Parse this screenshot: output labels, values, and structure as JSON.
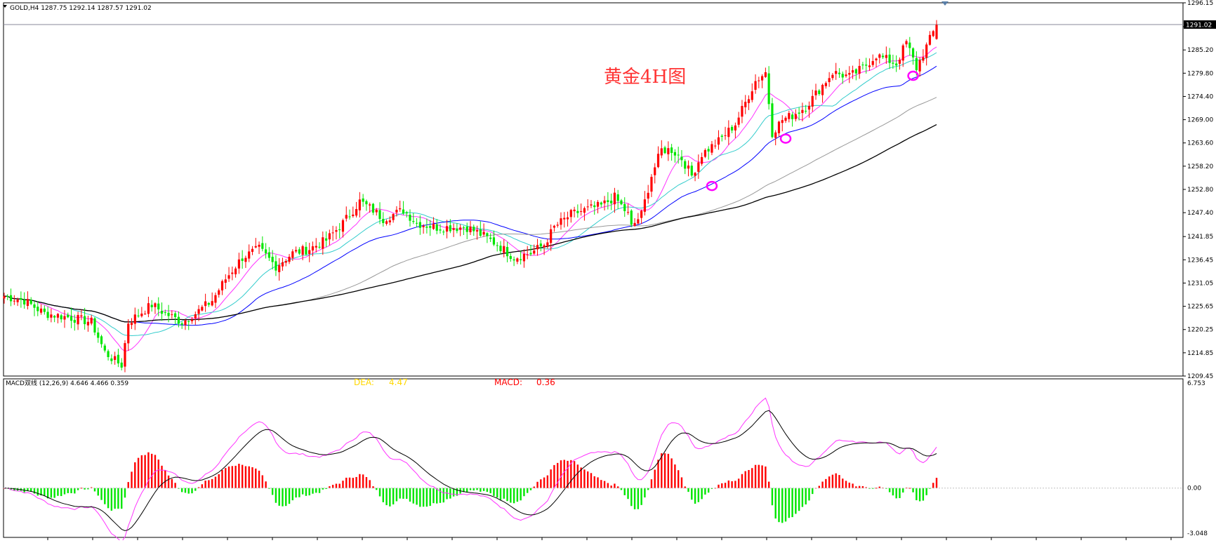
{
  "main": {
    "header_text": "GOLD,H4  1287.75 1292.14 1287.57 1291.02",
    "annotation": "黄金4H图",
    "current_price": "1291.02",
    "price_ticks": [
      "1296.15",
      "1290.60",
      "1285.20",
      "1279.80",
      "1274.40",
      "1269.00",
      "1263.60",
      "1258.20",
      "1252.80",
      "1247.40",
      "1241.85",
      "1236.45",
      "1231.05",
      "1225.65",
      "1220.25",
      "1214.85",
      "1209.45"
    ],
    "price_range": [
      1209.45,
      1296.15
    ],
    "colors": {
      "up": "#ff0000",
      "down": "#00e600",
      "ma_magenta": "#ff33ff",
      "ma_cyan": "#33cccc",
      "ma_blue": "#0000ff",
      "ma_gray": "#999999",
      "ma_black": "#000000",
      "marker": "#ff00ff",
      "annotation": "#ff3333"
    }
  },
  "indicator": {
    "label": "MACD双线 (12,26,9) 4.646 4.466 0.359",
    "dea_label": "DEA:",
    "dea_value": "4.47",
    "macd_label": "MACD:",
    "macd_value": "0.36",
    "ticks": [
      "6.753",
      "0.00",
      "-3.048"
    ],
    "range": [
      -3.048,
      6.753
    ],
    "colors": {
      "dea": "#ffd700",
      "macd": "#ff0000",
      "line_black": "#000000",
      "line_magenta": "#ff33ff"
    }
  },
  "chart_data": {
    "type": "candlestick",
    "symbol": "GOLD",
    "timeframe": "H4",
    "ohlc_last": {
      "open": 1287.75,
      "high": 1292.14,
      "low": 1287.57,
      "close": 1291.02
    },
    "close_knots": [
      [
        0,
        1228
      ],
      [
        6,
        1227
      ],
      [
        12,
        1224
      ],
      [
        20,
        1223
      ],
      [
        26,
        1222
      ],
      [
        30,
        1215
      ],
      [
        33,
        1213
      ],
      [
        35,
        1212
      ],
      [
        37,
        1222
      ],
      [
        44,
        1226
      ],
      [
        48,
        1224
      ],
      [
        53,
        1222
      ],
      [
        57,
        1224
      ],
      [
        62,
        1227
      ],
      [
        66,
        1232
      ],
      [
        71,
        1237
      ],
      [
        76,
        1239
      ],
      [
        81,
        1235
      ],
      [
        86,
        1238
      ],
      [
        91,
        1239
      ],
      [
        96,
        1241
      ],
      [
        101,
        1245
      ],
      [
        106,
        1250
      ],
      [
        110,
        1248
      ],
      [
        113,
        1246
      ],
      [
        119,
        1248
      ],
      [
        123,
        1245
      ],
      [
        129,
        1244
      ],
      [
        135,
        1244
      ],
      [
        138,
        1244
      ],
      [
        143,
        1242
      ],
      [
        147,
        1240
      ],
      [
        152,
        1237
      ],
      [
        157,
        1238
      ],
      [
        161,
        1240
      ],
      [
        164,
        1244
      ],
      [
        169,
        1247
      ],
      [
        173,
        1248
      ],
      [
        178,
        1249
      ],
      [
        182,
        1251
      ],
      [
        186,
        1247
      ],
      [
        187,
        1244
      ],
      [
        190,
        1247
      ],
      [
        193,
        1256
      ],
      [
        196,
        1262
      ],
      [
        199,
        1262
      ],
      [
        202,
        1260
      ],
      [
        205,
        1256
      ],
      [
        208,
        1261
      ],
      [
        213,
        1264
      ],
      [
        218,
        1268
      ],
      [
        221,
        1273
      ],
      [
        224,
        1278
      ],
      [
        227,
        1280
      ],
      [
        229,
        1266
      ],
      [
        232,
        1269
      ],
      [
        235,
        1270
      ],
      [
        239,
        1272
      ],
      [
        243,
        1276
      ],
      [
        247,
        1280
      ],
      [
        252,
        1279
      ],
      [
        256,
        1281
      ],
      [
        260,
        1284
      ],
      [
        263,
        1283
      ],
      [
        266,
        1282
      ],
      [
        269,
        1287
      ],
      [
        272,
        1281
      ],
      [
        275,
        1286
      ],
      [
        278,
        1291
      ]
    ],
    "ma_lines": [
      {
        "color": "#ff33ff",
        "period": 10
      },
      {
        "color": "#33cccc",
        "period": 20
      },
      {
        "color": "#0000ff",
        "period": 40
      },
      {
        "color": "#999999",
        "period": 80
      },
      {
        "color": "#000000",
        "period": 110
      }
    ],
    "markers": [
      {
        "bar": 211,
        "price": 1253.6
      },
      {
        "bar": 233,
        "price": 1264.6
      },
      {
        "bar": 271,
        "price": 1279.2
      }
    ],
    "macd_ylim": [
      -3.048,
      6.753
    ]
  }
}
